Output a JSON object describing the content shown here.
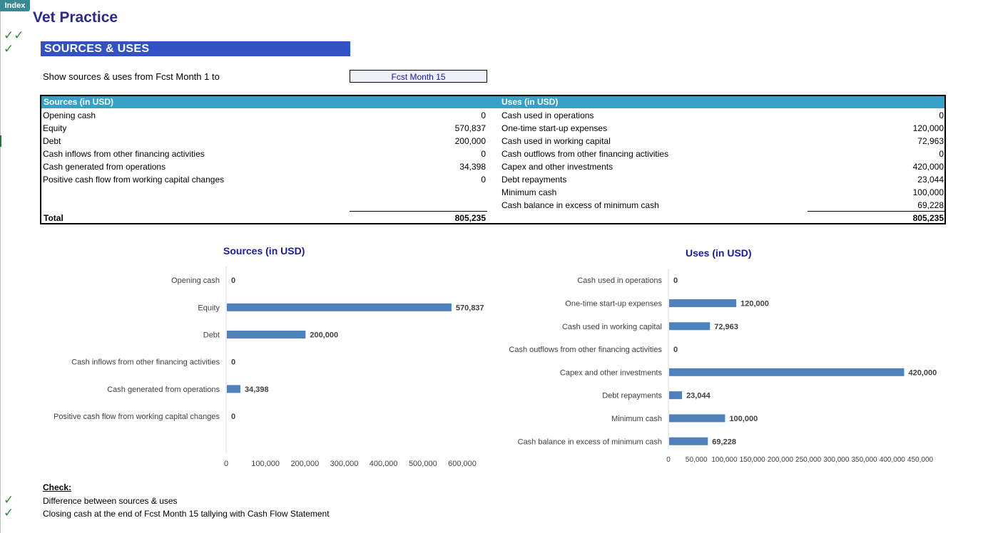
{
  "index_tab": "Index",
  "title": "Vet Practice",
  "section": "SOURCES & USES",
  "show_label": "Show sources & uses from Fcst Month 1 to",
  "selected_month": "Fcst Month 15",
  "sources": {
    "header": "Sources (in USD)",
    "rows": [
      {
        "label": "Opening cash",
        "value": "0"
      },
      {
        "label": "Equity",
        "value": "570,837"
      },
      {
        "label": "Debt",
        "value": "200,000"
      },
      {
        "label": "Cash inflows from other financing activities",
        "value": "0"
      },
      {
        "label": "Cash generated from operations",
        "value": "34,398"
      },
      {
        "label": "Positive cash flow from working capital changes",
        "value": "0"
      }
    ],
    "total_label": "Total",
    "total": "805,235"
  },
  "uses": {
    "header": "Uses (in USD)",
    "rows": [
      {
        "label": "Cash used in operations",
        "value": "0"
      },
      {
        "label": "One-time start-up expenses",
        "value": "120,000"
      },
      {
        "label": "Cash used in working capital",
        "value": "72,963"
      },
      {
        "label": "Cash outflows from other  financing activities",
        "value": "0"
      },
      {
        "label": "Capex and other investments",
        "value": "420,000"
      },
      {
        "label": "Debt repayments",
        "value": "23,044"
      },
      {
        "label": "Minimum cash",
        "value": "100,000"
      },
      {
        "label": "Cash balance in excess of minimum cash",
        "value": "69,228"
      }
    ],
    "total": "805,235"
  },
  "chart_data": [
    {
      "type": "bar",
      "orientation": "horizontal",
      "title": "Sources (in USD)",
      "categories": [
        "Opening cash",
        "Equity",
        "Debt",
        "Cash inflows from other financing activities",
        "Cash generated from operations",
        "Positive cash flow from working capital changes"
      ],
      "values": [
        0,
        570837,
        200000,
        0,
        34398,
        0
      ],
      "value_labels": [
        "0",
        "570,837",
        "200,000",
        "0",
        "34,398",
        "0"
      ],
      "xlim": [
        0,
        600000
      ],
      "ticks": [
        0,
        100000,
        200000,
        300000,
        400000,
        500000,
        600000
      ],
      "tick_labels": [
        "0",
        "100,000",
        "200,000",
        "300,000",
        "400,000",
        "500,000",
        "600,000"
      ],
      "bar_color": "#4f81bd",
      "grid": false
    },
    {
      "type": "bar",
      "orientation": "horizontal",
      "title": "Uses (in USD)",
      "categories": [
        "Cash used in operations",
        "One-time start-up expenses",
        "Cash used in working capital",
        "Cash outflows from other  financing activities",
        "Capex and other investments",
        "Debt repayments",
        "Minimum cash",
        "Cash balance in excess of minimum cash"
      ],
      "values": [
        0,
        120000,
        72963,
        0,
        420000,
        23044,
        100000,
        69228
      ],
      "value_labels": [
        "0",
        "120,000",
        "72,963",
        "0",
        "420,000",
        "23,044",
        "100,000",
        "69,228"
      ],
      "xlim": [
        0,
        450000
      ],
      "ticks": [
        0,
        50000,
        100000,
        150000,
        200000,
        250000,
        300000,
        350000,
        400000,
        450000
      ],
      "tick_labels": [
        "0",
        "50,000",
        "100,000",
        "150,000",
        "200,000",
        "250,000",
        "300,000",
        "350,000",
        "400,000",
        "450,000"
      ],
      "bar_color": "#4f81bd",
      "grid": false
    }
  ],
  "check": {
    "heading": "Check:",
    "items": [
      "Difference between sources & uses",
      "Closing cash at the end of Fcst Month 15 tallying with Cash Flow Statement"
    ]
  },
  "icons": {
    "check": "checkmark-icon",
    "check_color": "#2e8b3e"
  }
}
